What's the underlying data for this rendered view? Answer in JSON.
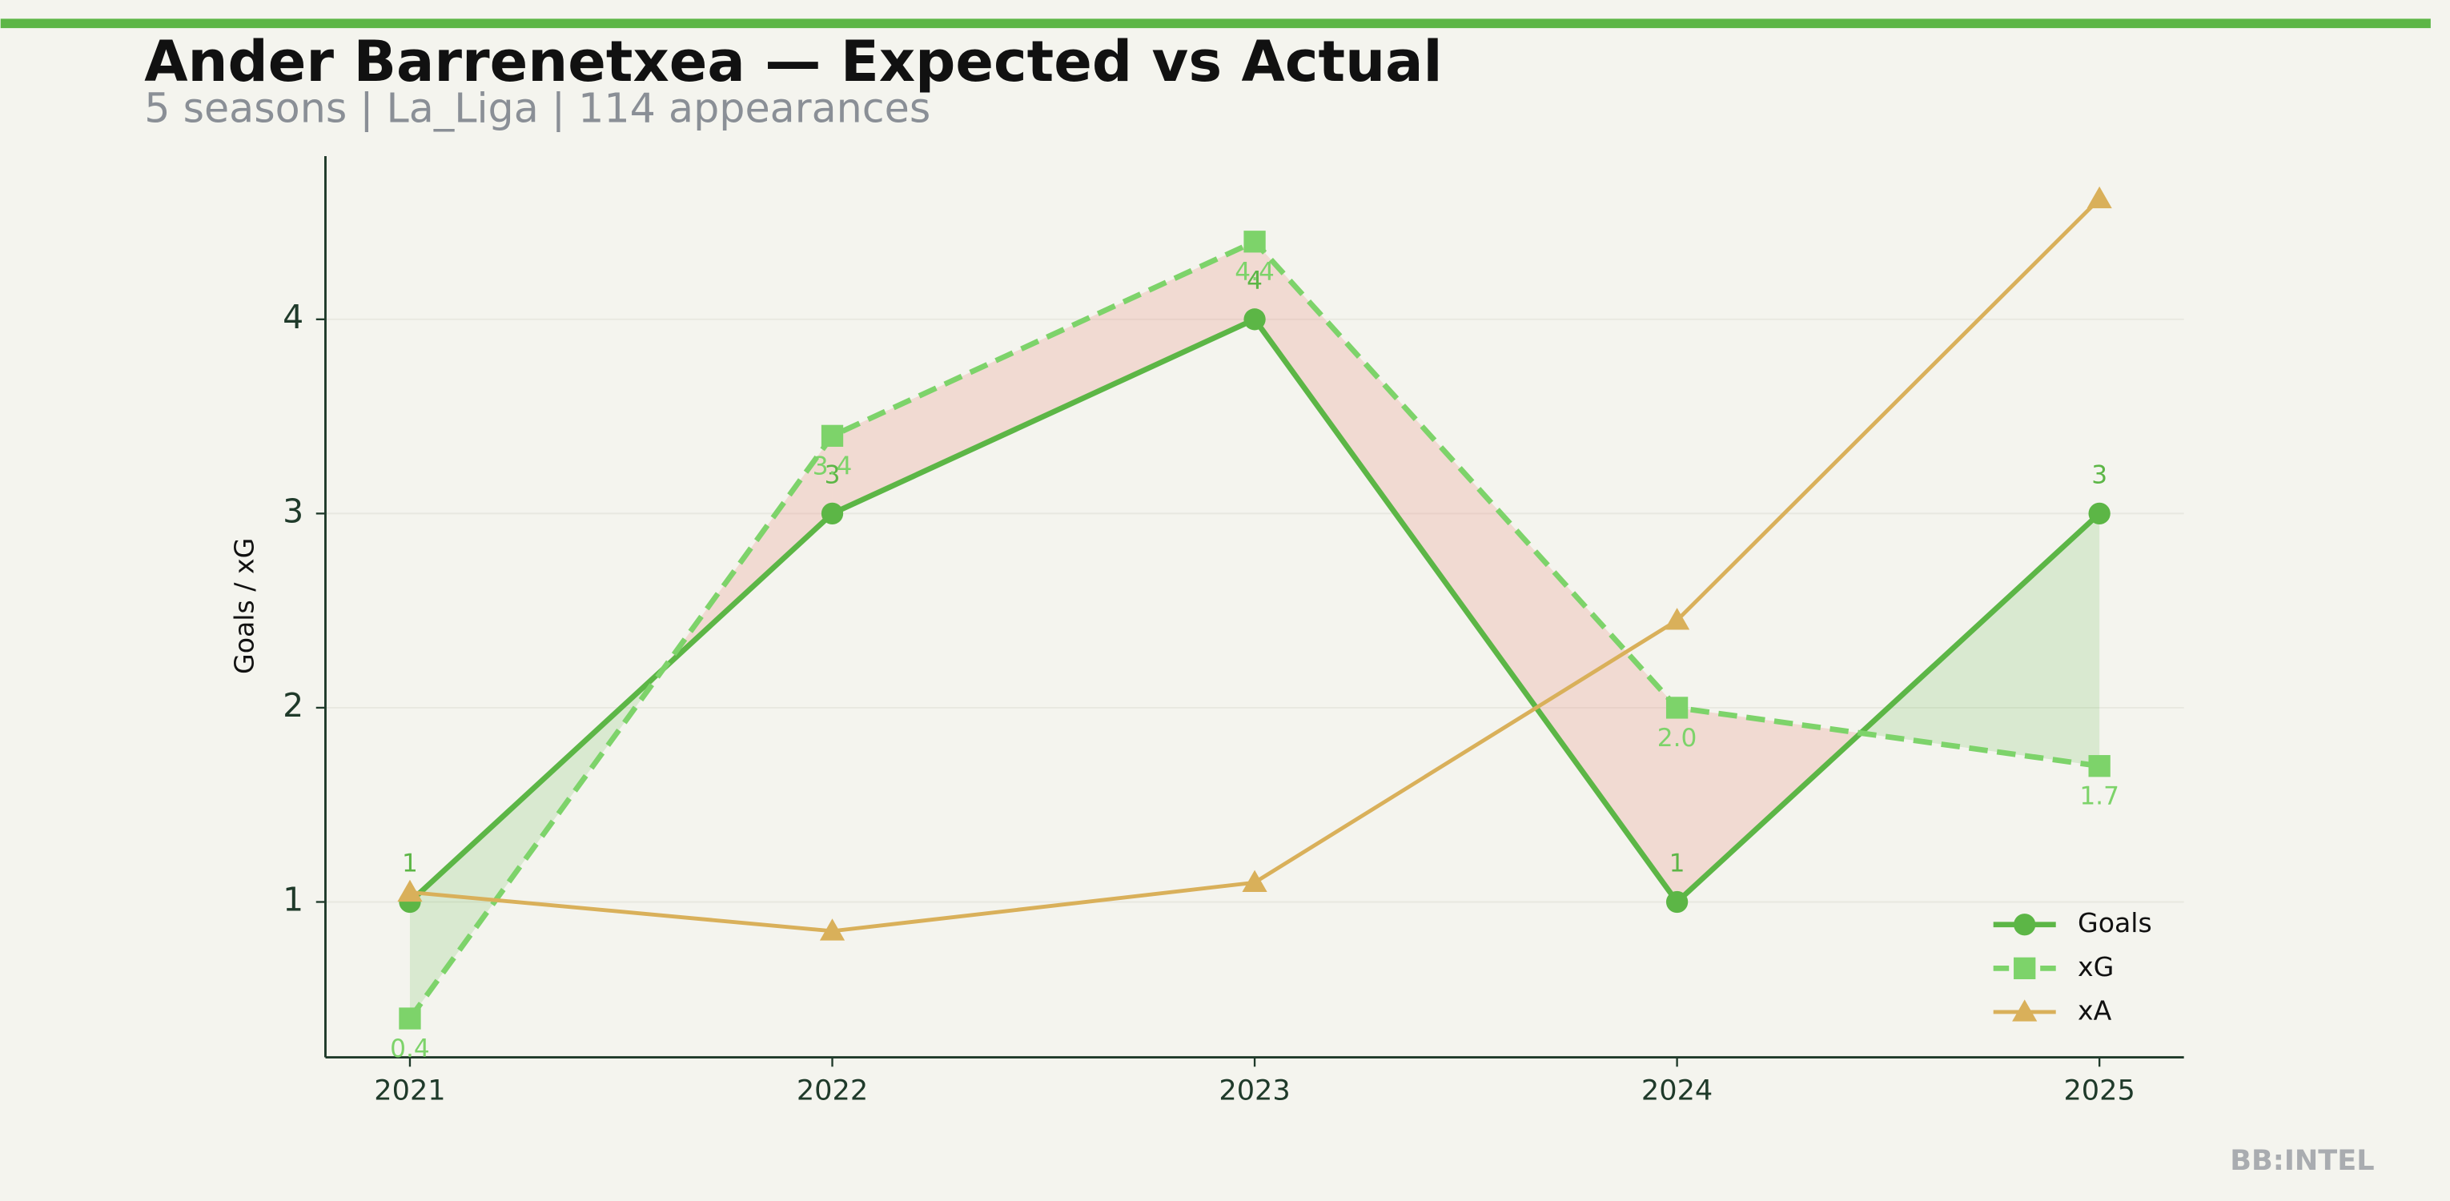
{
  "chart_data": {
    "type": "line",
    "title": "Ander Barrenetxea — Expected vs Actual",
    "subtitle": "5 seasons | La_Liga | 114 appearances",
    "y_label": "Goals / xG",
    "watermark": "BB:INTEL",
    "x": [
      2021,
      2022,
      2023,
      2024,
      2025
    ],
    "xlim": [
      2020.8,
      2025.2
    ],
    "xticks": [
      2021,
      2022,
      2023,
      2024,
      2025
    ],
    "ylim": [
      0.2,
      4.84
    ],
    "yticks": [
      1,
      2,
      3,
      4
    ],
    "legend": "lower right",
    "series": [
      {
        "name": "Goals",
        "color": "#5cb646",
        "marker": "circle",
        "dash": false,
        "values": [
          1,
          3,
          4,
          1,
          3
        ],
        "value_labels": [
          "1",
          "3",
          "4",
          "1",
          "3"
        ]
      },
      {
        "name": "xG",
        "color": "#7dd36a",
        "marker": "square",
        "dash": true,
        "values": [
          0.4,
          3.4,
          4.4,
          2.0,
          1.7
        ],
        "value_labels": [
          "0.4",
          "3.4",
          "4.4",
          "2.0",
          "1.7"
        ]
      },
      {
        "name": "xA",
        "color": "#d9b05a",
        "marker": "triangle",
        "dash": false,
        "values": [
          1.05,
          0.85,
          1.1,
          2.45,
          4.62
        ]
      }
    ]
  }
}
